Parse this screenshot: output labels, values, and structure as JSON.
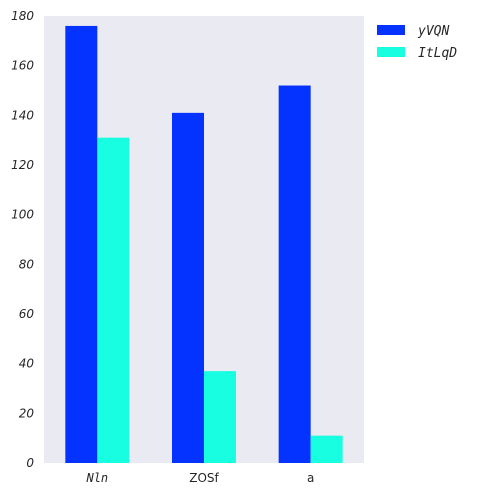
{
  "chart_data": {
    "type": "bar",
    "categories": [
      "Nln",
      "ZOSf",
      "a"
    ],
    "series": [
      {
        "name": "yVQN",
        "values": [
          176,
          141,
          152
        ],
        "color": "#0433ff"
      },
      {
        "name": "ItLqD",
        "values": [
          131,
          37,
          11
        ],
        "color": "#17ffe0"
      }
    ],
    "ylim": [
      0,
      180
    ],
    "yticks": [
      0,
      20,
      40,
      60,
      80,
      100,
      120,
      140,
      160,
      180
    ],
    "title": "",
    "xlabel": "",
    "ylabel": "",
    "grid": false,
    "legend_position": "outside-top-right",
    "plot_background": "#eaeaf2"
  }
}
